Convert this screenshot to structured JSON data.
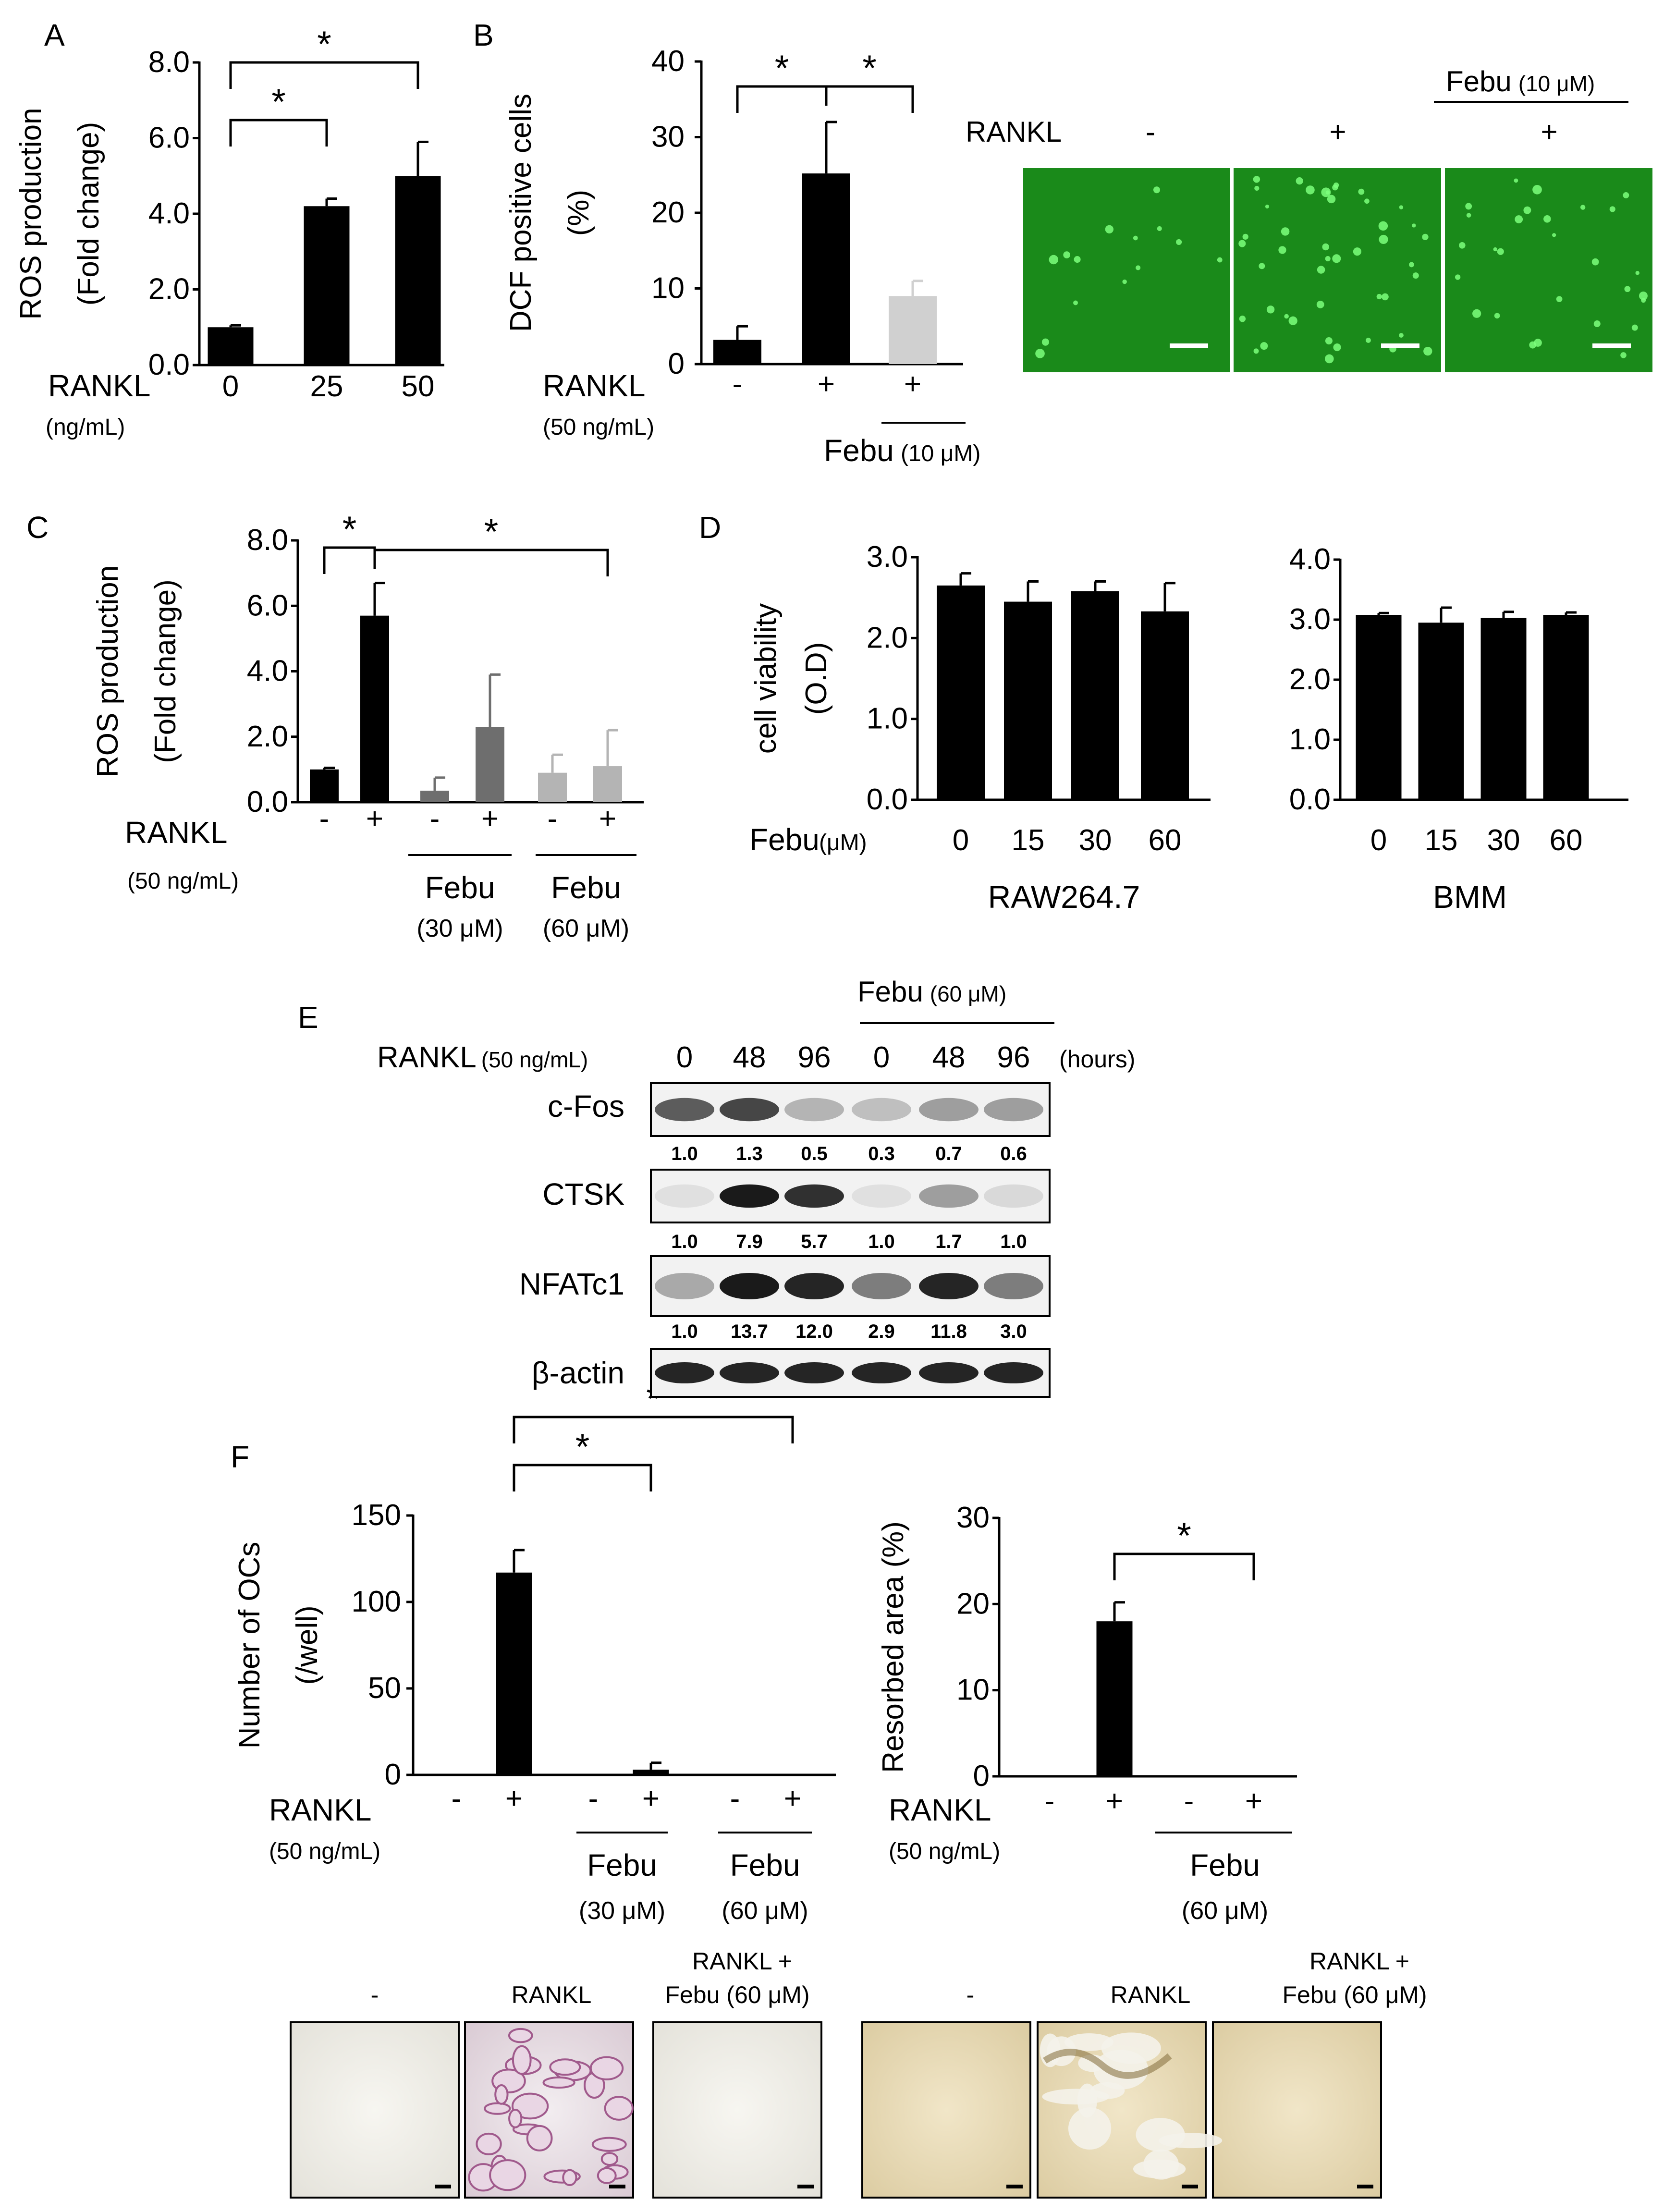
{
  "panel_labels": [
    "A",
    "B",
    "C",
    "D",
    "E",
    "F"
  ],
  "chart_data": [
    {
      "id": "A",
      "type": "bar",
      "ylabel_lines": [
        "ROS production",
        "(Fold change)"
      ],
      "ylim": [
        0,
        8
      ],
      "yticks": [
        "0.0",
        "2.0",
        "4.0",
        "6.0",
        "8.0"
      ],
      "categories": [
        "0",
        "25",
        "50"
      ],
      "values": [
        1.0,
        4.2,
        5.0
      ],
      "errors": [
        0.05,
        0.2,
        0.9
      ],
      "bar_colors": [
        "#000000",
        "#000000",
        "#000000"
      ],
      "treatment_label": "RANKL",
      "treatment_unit": "(ng/mL)",
      "significance": [
        {
          "from": 0,
          "to": 1,
          "mark": "*"
        },
        {
          "from": 0,
          "to": 2,
          "mark": "*"
        }
      ]
    },
    {
      "id": "B",
      "type": "bar",
      "ylabel_lines": [
        "DCF positive cells",
        "(%)"
      ],
      "ylim": [
        0,
        40
      ],
      "yticks": [
        "0",
        "10",
        "20",
        "30",
        "40"
      ],
      "categories": [
        "-",
        "+",
        "+"
      ],
      "values": [
        3.2,
        25.2,
        9.0
      ],
      "errors": [
        1.8,
        6.8,
        2.0
      ],
      "bar_colors": [
        "#000000",
        "#000000",
        "#d0d0d0"
      ],
      "treatment_label": "RANKL",
      "treatment_unit": "(50 ng/mL)",
      "drug_label": "Febu",
      "drug_conc": "(10 μM)",
      "significance": [
        {
          "from": 0,
          "to": 1,
          "mark": "*"
        },
        {
          "from": 1,
          "to": 2,
          "mark": "*"
        }
      ]
    },
    {
      "id": "C",
      "type": "bar",
      "ylabel_lines": [
        "ROS production",
        "(Fold change)"
      ],
      "ylim": [
        0,
        8
      ],
      "yticks": [
        "0.0",
        "2.0",
        "4.0",
        "6.0",
        "8.0"
      ],
      "categories": [
        "-",
        "+",
        "-",
        "+",
        "-",
        "+"
      ],
      "values": [
        1.0,
        5.7,
        0.35,
        2.3,
        0.9,
        1.1
      ],
      "errors": [
        0.05,
        1.0,
        0.4,
        1.6,
        0.55,
        1.1
      ],
      "bar_colors": [
        "#000000",
        "#000000",
        "#6e6e6e",
        "#6e6e6e",
        "#b4b4b4",
        "#b4b4b4"
      ],
      "treatment_label": "RANKL",
      "treatment_unit": "(50 ng/mL)",
      "groups": [
        {
          "label": "Febu",
          "conc": "(30 μM)"
        },
        {
          "label": "Febu",
          "conc": "(60 μM)"
        }
      ],
      "significance": [
        {
          "from": 0,
          "to": 1,
          "mark": "*"
        },
        {
          "from": 1,
          "to": 5,
          "mark": "*"
        }
      ]
    },
    {
      "id": "D1",
      "type": "bar",
      "ylabel_lines": [
        "cell viability",
        "(O.D)"
      ],
      "ylim": [
        0,
        3
      ],
      "yticks": [
        "0.0",
        "1.0",
        "2.0",
        "3.0"
      ],
      "categories": [
        "0",
        "15",
        "30",
        "60"
      ],
      "values": [
        2.65,
        2.45,
        2.58,
        2.33
      ],
      "errors": [
        0.15,
        0.25,
        0.12,
        0.35
      ],
      "treatment_label": "Febu",
      "treatment_unit": "(μM)",
      "cell_line": "RAW264.7"
    },
    {
      "id": "D2",
      "type": "bar",
      "ylim": [
        0,
        4
      ],
      "yticks": [
        "0.0",
        "1.0",
        "2.0",
        "3.0",
        "4.0"
      ],
      "categories": [
        "0",
        "15",
        "30",
        "60"
      ],
      "values": [
        3.08,
        2.95,
        3.03,
        3.08
      ],
      "errors": [
        0.03,
        0.25,
        0.1,
        0.04
      ],
      "cell_line": "BMM"
    },
    {
      "id": "F1",
      "type": "bar",
      "ylabel_lines": [
        "Number of OCs",
        "(/well)"
      ],
      "ylim": [
        0,
        150
      ],
      "yticks": [
        "0",
        "50",
        "100",
        "150"
      ],
      "categories": [
        "-",
        "+",
        "-",
        "+",
        "-",
        "+"
      ],
      "values": [
        0,
        117,
        0,
        3,
        0,
        0
      ],
      "errors": [
        0,
        13,
        0,
        4,
        0,
        0
      ],
      "treatment_label": "RANKL",
      "treatment_unit": "(50 ng/mL)",
      "groups": [
        {
          "label": "Febu",
          "conc": "(30 μM)"
        },
        {
          "label": "Febu",
          "conc": "(60 μM)"
        }
      ],
      "significance": [
        {
          "from": 1,
          "to": 3,
          "mark": "*"
        },
        {
          "from": 1,
          "to": 5,
          "mark": "*"
        }
      ]
    },
    {
      "id": "F2",
      "type": "bar",
      "ylabel_lines": [
        "Resorbed area (%)"
      ],
      "ylim": [
        0,
        30
      ],
      "yticks": [
        "0",
        "10",
        "20",
        "30"
      ],
      "categories": [
        "-",
        "+",
        "-",
        "+"
      ],
      "values": [
        0,
        18,
        0,
        0
      ],
      "errors": [
        0,
        2.2,
        0,
        0
      ],
      "treatment_label": "RANKL",
      "treatment_unit": "(50 ng/mL)",
      "drug_label": "Febu",
      "drug_conc": "(60 μM)",
      "significance": [
        {
          "from": 1,
          "to": 3,
          "mark": "*"
        }
      ]
    }
  ],
  "micrographs_B": {
    "header_drug": "Febu",
    "header_conc": "(10 μM)",
    "row_label": "RANKL",
    "signs": [
      "-",
      "+",
      "+"
    ]
  },
  "western": {
    "drug_label": "Febu",
    "drug_conc": "(60 μM)",
    "treatment_label": "RANKL",
    "treatment_unit": "(50 ng/mL)",
    "timepoints": [
      "0",
      "48",
      "96",
      "0",
      "48",
      "96"
    ],
    "time_unit": "(hours)",
    "rows": [
      {
        "protein": "c-Fos",
        "values": [
          "1.0",
          "1.3",
          "0.5",
          "0.3",
          "0.7",
          "0.6"
        ],
        "intensity": [
          0.65,
          0.75,
          0.25,
          0.2,
          0.35,
          0.35
        ]
      },
      {
        "protein": "CTSK",
        "values": [
          "1.0",
          "7.9",
          "5.7",
          "1.0",
          "1.7",
          "1.0"
        ],
        "intensity": [
          0.05,
          0.95,
          0.85,
          0.05,
          0.35,
          0.08
        ]
      },
      {
        "protein": "NFATc1",
        "values": [
          "1.0",
          "13.7",
          "12.0",
          "2.9",
          "11.8",
          "3.0"
        ],
        "intensity": [
          0.3,
          0.95,
          0.9,
          0.5,
          0.9,
          0.5
        ]
      },
      {
        "protein": "β-actin",
        "values": [],
        "intensity": [
          0.9,
          0.9,
          0.9,
          0.9,
          0.9,
          0.9
        ]
      }
    ]
  },
  "stain_images": {
    "trap_labels": [
      "-",
      "RANKL",
      "RANKL +"
    ],
    "trap_label_line2": "Febu (60 μM)",
    "pit_labels": [
      "-",
      "RANKL",
      "RANKL +"
    ],
    "pit_label_line2": "Febu (60 μM)"
  },
  "colors": {
    "bar": "#000000",
    "green": "#1a8a1a",
    "trap_bg": "#f0eee6",
    "pit_bg": "#e9dcbc"
  }
}
